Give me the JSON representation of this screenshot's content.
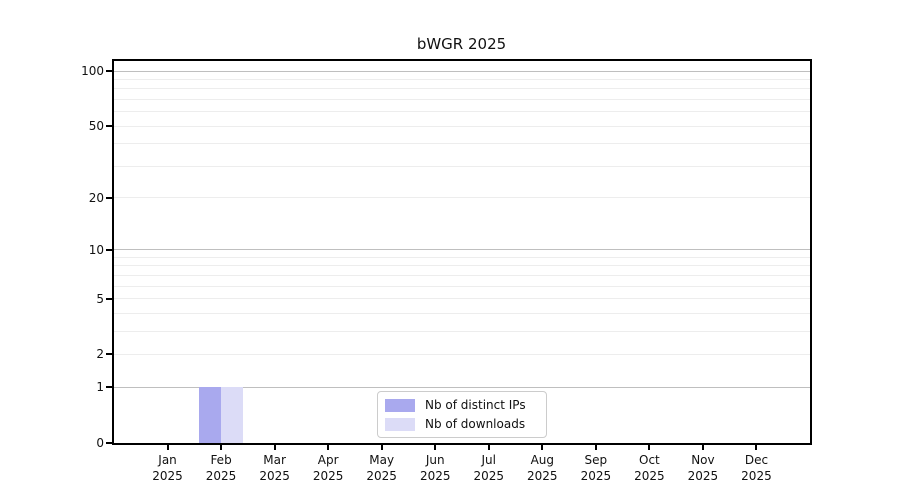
{
  "title": "bWGR 2025",
  "chart_data": {
    "type": "bar",
    "title": "bWGR 2025",
    "categories": [
      "Jan 2025",
      "Feb 2025",
      "Mar 2025",
      "Apr 2025",
      "May 2025",
      "Jun 2025",
      "Jul 2025",
      "Aug 2025",
      "Sep 2025",
      "Oct 2025",
      "Nov 2025",
      "Dec 2025"
    ],
    "series": [
      {
        "name": "Nb of distinct IPs",
        "color": "#a9a9ee",
        "values": [
          0,
          1,
          0,
          0,
          0,
          0,
          0,
          0,
          0,
          0,
          0,
          0
        ]
      },
      {
        "name": "Nb of downloads",
        "color": "#dcdcf7",
        "values": [
          0,
          1,
          0,
          0,
          0,
          0,
          0,
          0,
          0,
          0,
          0,
          0
        ]
      }
    ],
    "xlabel": "",
    "ylabel": "",
    "ylim": [
      0,
      100
    ],
    "y_scale": "log10(1+y)",
    "y_tick_values": [
      0,
      1,
      2,
      5,
      10,
      20,
      50,
      100
    ],
    "y_tick_labels": [
      "0",
      "1",
      "2",
      "5",
      "10",
      "20",
      "50",
      "100"
    ],
    "y_major_gridlines": [
      1,
      10,
      100
    ],
    "y_minor_gridlines": [
      2,
      3,
      4,
      5,
      6,
      7,
      8,
      9,
      20,
      30,
      40,
      50,
      60,
      70,
      80,
      90
    ],
    "grid": true,
    "legend_position": "lower center"
  },
  "colors": {
    "distinct_ips_bar": "#a9a9ee",
    "downloads_bar": "#dcdcf7",
    "axis_frame": "#000000",
    "major_gridline": "#bfbfbf",
    "minor_gridline": "#ededed",
    "legend_border": "#cccccc",
    "background": "#ffffff",
    "text": "#111111"
  }
}
